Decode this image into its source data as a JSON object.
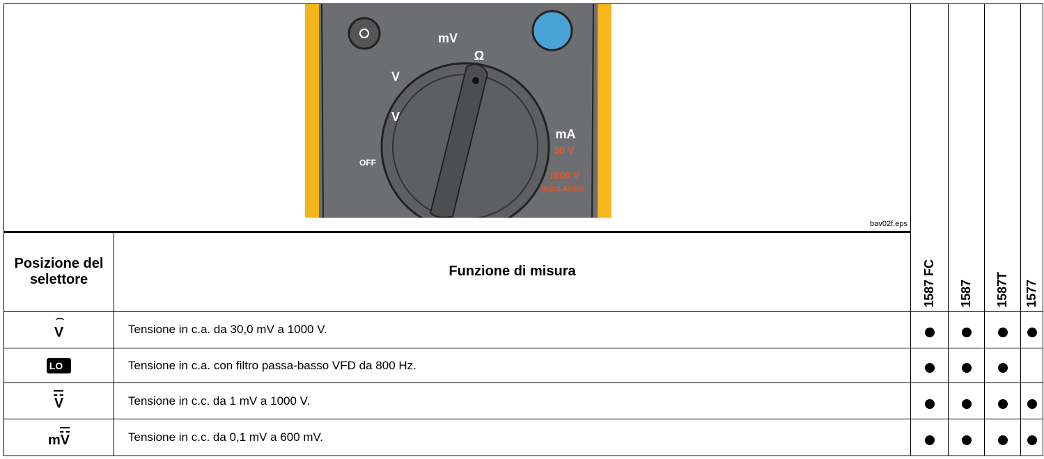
{
  "figure": {
    "labels": {
      "mv": "mV",
      "v_dc": "V",
      "ohm": "Ω",
      "v_ac": "V",
      "ma": "mA",
      "off": "OFF",
      "v50": "50 V",
      "v1000": "1000 V",
      "insulation": "INSULATION"
    },
    "caption": "bav02f.eps"
  },
  "table": {
    "header": {
      "position": "Posizione del selettore",
      "function": "Funzione di misura",
      "models": [
        "1587 FC",
        "1587",
        "1587T",
        "1577"
      ]
    },
    "rows": [
      {
        "symbol": "V",
        "function": "Tensione in c.a. da 30,0 mV a 1000 V.",
        "models": [
          true,
          true,
          true,
          true
        ]
      },
      {
        "symbol": "LO",
        "function": "Tensione in c.a. con filtro passa-basso VFD da 800 Hz.",
        "models": [
          true,
          true,
          true,
          false
        ]
      },
      {
        "symbol": "V",
        "function": "Tensione in c.c. da 1 mV a 1000 V.",
        "models": [
          true,
          true,
          true,
          true
        ]
      },
      {
        "symbol": "mV",
        "function": "Tensione in c.c. da 0,1 mV a 600 mV.",
        "models": [
          true,
          true,
          true,
          true
        ]
      }
    ]
  }
}
